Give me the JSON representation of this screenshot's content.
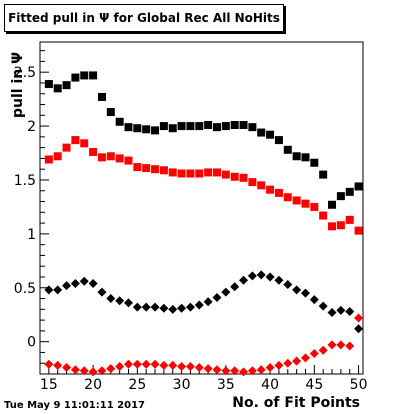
{
  "chart_data": {
    "type": "scatter",
    "title": "Fitted pull in  Ψ  for Global Rec All NoHits",
    "xlabel": "No. of Fit Points",
    "ylabel": "pull in  Ψ",
    "timestamp": "Tue May  9 11:01:11 2017",
    "xlim": [
      14,
      50.5
    ],
    "ylim": [
      -0.3,
      2.78
    ],
    "x_ticks": [
      15,
      20,
      25,
      30,
      35,
      40,
      45,
      50
    ],
    "y_ticks": [
      0,
      0.5,
      1,
      1.5,
      2,
      2.5
    ],
    "y_tick_labels": [
      "0",
      "0.5",
      "1",
      "1.5",
      "2",
      "2.5"
    ],
    "x": [
      14,
      15,
      16,
      17,
      18,
      19,
      20,
      21,
      22,
      23,
      24,
      25,
      26,
      27,
      28,
      29,
      30,
      31,
      32,
      33,
      34,
      35,
      36,
      37,
      38,
      39,
      40,
      41,
      42,
      43,
      44,
      45,
      46,
      47,
      48,
      49,
      50
    ],
    "series": [
      {
        "marker": "square",
        "color": "#000000",
        "values": [
          2.29,
          2.39,
          2.35,
          2.38,
          2.45,
          2.47,
          2.47,
          2.27,
          2.13,
          2.04,
          1.99,
          1.98,
          1.97,
          1.96,
          2.0,
          1.98,
          2.0,
          2.0,
          2.0,
          2.01,
          1.99,
          2.0,
          2.01,
          2.01,
          1.99,
          1.94,
          1.92,
          1.87,
          1.78,
          1.72,
          1.71,
          1.66,
          1.55,
          1.27,
          1.35,
          1.39,
          1.44
        ]
      },
      {
        "marker": "square",
        "color": "#ff0000",
        "values": [
          1.68,
          1.69,
          1.72,
          1.8,
          1.87,
          1.84,
          1.76,
          1.71,
          1.72,
          1.7,
          1.68,
          1.62,
          1.61,
          1.6,
          1.59,
          1.57,
          1.56,
          1.56,
          1.56,
          1.57,
          1.57,
          1.55,
          1.53,
          1.52,
          1.48,
          1.45,
          1.41,
          1.38,
          1.34,
          1.31,
          1.28,
          1.25,
          1.17,
          1.07,
          1.08,
          1.13,
          1.03
        ]
      },
      {
        "marker": "diamond",
        "color": "#000000",
        "values": [
          0.4,
          0.48,
          0.48,
          0.52,
          0.54,
          0.56,
          0.54,
          0.46,
          0.4,
          0.38,
          0.36,
          0.32,
          0.32,
          0.32,
          0.31,
          0.3,
          0.31,
          0.32,
          0.34,
          0.37,
          0.41,
          0.46,
          0.51,
          0.57,
          0.61,
          0.62,
          0.6,
          0.57,
          0.53,
          0.48,
          0.45,
          0.39,
          0.33,
          0.27,
          0.29,
          0.28,
          0.12
        ]
      },
      {
        "marker": "diamond",
        "color": "#ff0000",
        "values": [
          -0.22,
          -0.21,
          -0.22,
          -0.24,
          -0.26,
          -0.27,
          -0.28,
          -0.27,
          -0.25,
          -0.23,
          -0.21,
          -0.21,
          -0.21,
          -0.21,
          -0.22,
          -0.22,
          -0.23,
          -0.23,
          -0.24,
          -0.25,
          -0.26,
          -0.27,
          -0.27,
          -0.28,
          -0.27,
          -0.26,
          -0.24,
          -0.22,
          -0.2,
          -0.18,
          -0.15,
          -0.11,
          -0.08,
          -0.03,
          -0.03,
          -0.04,
          0.22
        ]
      }
    ]
  }
}
